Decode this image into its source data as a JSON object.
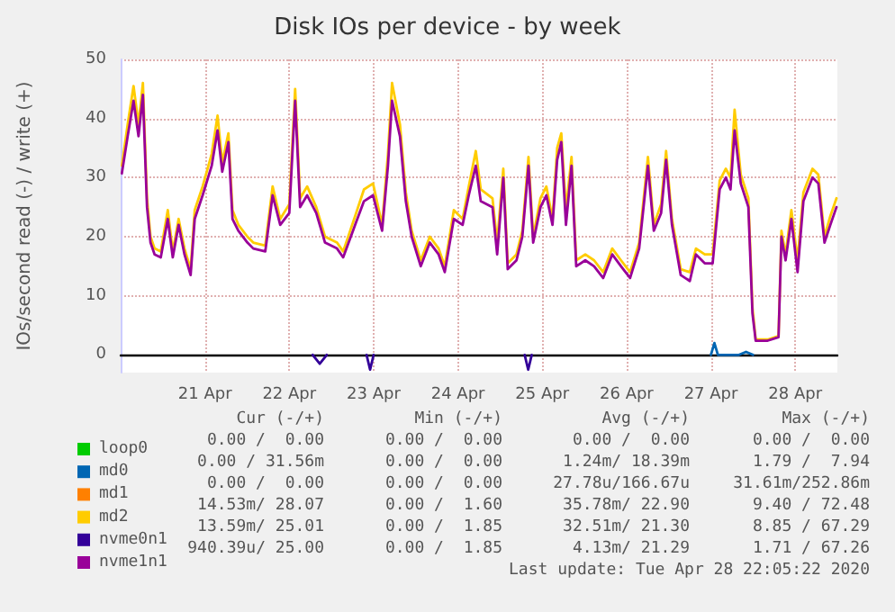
{
  "chart_data": {
    "type": "line",
    "title": "Disk IOs per device - by week",
    "ylabel": "IOs/second read (-) / write (+)",
    "x": [
      "2020-04-20T12:20",
      "2020-04-20T14:00",
      "2020-04-20T15:40",
      "2020-04-20T17:05",
      "2020-04-20T18:20",
      "2020-04-20T19:30",
      "2020-04-20T20:30",
      "2020-04-20T21:40",
      "2020-04-20T23:25",
      "2020-04-21T01:25",
      "2020-04-21T02:50",
      "2020-04-21T04:30",
      "2020-04-21T06:10",
      "2020-04-21T07:55",
      "2020-04-21T09:05",
      "2020-04-21T11:20",
      "2020-04-21T13:55",
      "2020-04-21T15:35",
      "2020-04-21T16:55",
      "2020-04-21T18:40",
      "2020-04-21T19:50",
      "2020-04-21T21:30",
      "2020-04-22T00:05",
      "2020-04-22T01:45",
      "2020-04-22T05:10",
      "2020-04-22T07:15",
      "2020-04-22T09:25",
      "2020-04-22T12:00",
      "2020-04-22T13:40",
      "2020-04-22T15:05",
      "2020-04-22T17:05",
      "2020-04-22T19:40",
      "2020-04-22T22:10",
      "2020-04-23T01:35",
      "2020-04-23T03:20",
      "2020-04-23T06:45",
      "2020-04-23T09:15",
      "2020-04-23T11:50",
      "2020-04-23T14:25",
      "2020-04-23T16:05",
      "2020-04-23T17:15",
      "2020-04-23T19:30",
      "2020-04-23T21:10",
      "2020-04-23T22:50",
      "2020-04-24T01:25",
      "2020-04-24T04:00",
      "2020-04-24T06:30",
      "2020-04-24T08:15",
      "2020-04-24T10:50",
      "2020-04-24T13:20",
      "2020-04-24T15:05",
      "2020-04-24T17:05",
      "2020-04-24T18:30",
      "2020-04-24T21:50",
      "2020-04-24T23:10",
      "2020-04-25T00:55",
      "2020-04-25T02:10",
      "2020-04-25T04:40",
      "2020-04-25T06:20",
      "2020-04-25T08:05",
      "2020-04-25T09:25",
      "2020-04-25T11:30",
      "2020-04-25T13:10",
      "2020-04-25T14:55",
      "2020-04-25T16:15",
      "2020-04-25T17:25",
      "2020-04-25T18:45",
      "2020-04-25T20:20",
      "2020-04-25T21:40",
      "2020-04-26T00:15",
      "2020-04-26T02:45",
      "2020-04-26T05:20",
      "2020-04-26T07:55",
      "2020-04-26T10:25",
      "2020-04-26T13:00",
      "2020-04-26T15:35",
      "2020-04-26T18:05",
      "2020-04-26T19:45",
      "2020-04-26T21:50",
      "2020-04-26T23:15",
      "2020-04-27T00:55",
      "2020-04-27T03:25",
      "2020-04-27T06:00",
      "2020-04-27T07:45",
      "2020-04-27T10:15",
      "2020-04-27T12:30",
      "2020-04-27T14:30",
      "2020-04-27T16:15",
      "2020-04-27T17:35",
      "2020-04-27T18:45",
      "2020-04-27T20:30",
      "2020-04-27T22:40",
      "2020-04-27T23:50",
      "2020-04-28T00:45",
      "2020-04-28T04:10",
      "2020-04-28T07:15",
      "2020-04-28T08:05",
      "2020-04-28T09:15",
      "2020-04-28T10:55",
      "2020-04-28T12:40",
      "2020-04-28T14:20",
      "2020-04-28T16:55",
      "2020-04-28T18:35",
      "2020-04-28T20:20",
      "2020-04-28T22:00",
      "2020-04-28T23:45"
    ],
    "series": [
      {
        "name": "loop0",
        "color": "#00cc00",
        "values": [
          null,
          null,
          null,
          null,
          null,
          null,
          null,
          null,
          null,
          null,
          null,
          null,
          null,
          null,
          null,
          null,
          null,
          null,
          null,
          null,
          null,
          null,
          null,
          null,
          null,
          null,
          null,
          null,
          null,
          null,
          null,
          null,
          null,
          null,
          null,
          null,
          null,
          null,
          null,
          null,
          null,
          null,
          null,
          null,
          null,
          null,
          null,
          null,
          null,
          null,
          null,
          null,
          null,
          null,
          null,
          null,
          null,
          null,
          null,
          null,
          null,
          null,
          null,
          null,
          null,
          null,
          null,
          null,
          null,
          null,
          null,
          null,
          null,
          null,
          null,
          null,
          null,
          null,
          null,
          null,
          null,
          null,
          null,
          null,
          null,
          null,
          null,
          null,
          null,
          null,
          null,
          null,
          null,
          null,
          null,
          null,
          null,
          null,
          null,
          null,
          null,
          null,
          null,
          null,
          null,
          null
        ]
      },
      {
        "name": "md0",
        "color": "#0066b3",
        "x": [
          "2020-04-27T12:00",
          "2020-04-27T13:00",
          "2020-04-27T14:00",
          "2020-04-27T20:00",
          "2020-04-27T22:00",
          "2020-04-28T00:00"
        ],
        "values": [
          0,
          2,
          0,
          0,
          0.5,
          0
        ]
      },
      {
        "name": "md1",
        "color": "#ff8000",
        "values": [
          null,
          null,
          null,
          null,
          null,
          null,
          null,
          null,
          null,
          null,
          null,
          null,
          null,
          null,
          null,
          null,
          null,
          null,
          null,
          null,
          null,
          null,
          null,
          null,
          null,
          null,
          null,
          null,
          null,
          null,
          null,
          null,
          null,
          null,
          null,
          null,
          null,
          null,
          null,
          null,
          null,
          null,
          null,
          null,
          null,
          null,
          null,
          null,
          null,
          null,
          null,
          null,
          null,
          null,
          null,
          null,
          null,
          null,
          null,
          null,
          null,
          null,
          null,
          null,
          null,
          null,
          null,
          null,
          null,
          null,
          null,
          null,
          null,
          null,
          null,
          null,
          null,
          null,
          null,
          null,
          null,
          null,
          null,
          null,
          null,
          null,
          null,
          null,
          null,
          null,
          null,
          null,
          null,
          null,
          null,
          null,
          null,
          null,
          null,
          null,
          null,
          null,
          null,
          null,
          null,
          null
        ]
      },
      {
        "name": "md2",
        "color": "#ffcc00",
        "values": [
          32,
          39,
          45.5,
          39,
          46,
          26.5,
          20,
          18,
          17.5,
          24.5,
          17.5,
          23,
          18,
          14.5,
          24.5,
          28.5,
          34,
          40.5,
          32.5,
          37.5,
          24.5,
          22,
          20,
          19,
          18.5,
          28.5,
          23,
          25.5,
          45,
          26.5,
          28.5,
          25,
          20,
          19,
          17.5,
          23.5,
          28,
          29,
          22,
          34,
          46,
          39,
          27.5,
          21,
          16,
          20,
          18,
          15,
          24.5,
          23,
          28.5,
          34.5,
          28,
          26.5,
          19,
          31.5,
          15.5,
          17,
          21,
          33.5,
          20,
          26.5,
          28.5,
          23,
          35,
          37.5,
          24.5,
          33.5,
          16,
          17,
          16,
          14,
          18,
          16,
          14,
          19,
          33.5,
          22,
          25.5,
          34.5,
          23,
          14.5,
          14,
          18,
          17,
          17,
          29.5,
          31.5,
          30,
          41.5,
          30.5,
          26.5,
          8,
          2.6,
          2.6,
          3.2,
          21,
          17,
          24.5,
          16,
          27.5,
          31.5,
          30.5,
          20,
          23.5,
          26.5
        ]
      },
      {
        "name": "nvme0n1",
        "color": "#330099",
        "x": [
          "2020-04-22T18:40",
          "2020-04-22T20:40",
          "2020-04-22T22:40",
          "2020-04-23T00:00",
          "2020-04-23T10:00",
          "2020-04-23T11:00",
          "2020-04-23T12:00",
          "2020-04-24T00:00",
          "2020-04-25T07:00",
          "2020-04-25T08:00",
          "2020-04-25T09:00"
        ],
        "values": [
          0,
          -1.5,
          0,
          null,
          0,
          -2.5,
          0,
          null,
          0,
          -2.5,
          0
        ]
      },
      {
        "name": "nvme1n1",
        "color": "#990099",
        "values": [
          30.7,
          37,
          43,
          37,
          44,
          25,
          19,
          17,
          16.5,
          23,
          16.5,
          22,
          17,
          13.5,
          23,
          27,
          32,
          38,
          31,
          36,
          23,
          21,
          19,
          18,
          17.5,
          27,
          22,
          24,
          43,
          25,
          27,
          24,
          19,
          18,
          16.5,
          22,
          26,
          27,
          21,
          32,
          43,
          37,
          26,
          20,
          15,
          19,
          17,
          14,
          23,
          22,
          27,
          32,
          26,
          25,
          17,
          30,
          14.5,
          16,
          20,
          32,
          19,
          25,
          27,
          22,
          33,
          36,
          22,
          32,
          15,
          16,
          15,
          13,
          17,
          15,
          13,
          18,
          32,
          21,
          24,
          33,
          22,
          13.5,
          12.5,
          17,
          15.5,
          15.5,
          28,
          30,
          28,
          38,
          29,
          25,
          7,
          2.4,
          2.4,
          3,
          20,
          16,
          23,
          14,
          26,
          30,
          29,
          19,
          22,
          25
        ]
      }
    ],
    "xlim": [
      "2020-04-20T12:00",
      "2020-04-29T00:00"
    ],
    "xticks": [
      {
        "value": "2020-04-21T12:00",
        "label": "21 Apr"
      },
      {
        "value": "2020-04-22T12:00",
        "label": "22 Apr"
      },
      {
        "value": "2020-04-23T12:00",
        "label": "23 Apr"
      },
      {
        "value": "2020-04-24T12:00",
        "label": "24 Apr"
      },
      {
        "value": "2020-04-25T12:00",
        "label": "25 Apr"
      },
      {
        "value": "2020-04-26T12:00",
        "label": "26 Apr"
      },
      {
        "value": "2020-04-27T12:00",
        "label": "27 Apr"
      },
      {
        "value": "2020-04-28T12:00",
        "label": "28 Apr"
      }
    ],
    "ylim": [
      -3,
      50
    ],
    "yticks": [
      0,
      10,
      20,
      30,
      40,
      50
    ],
    "grid": true,
    "legend": "bottom left",
    "marker": "none",
    "line_style": "solid",
    "annotations": [
      "Cur (-/+)",
      "Min (-/+)",
      "Avg (-/+)",
      "Max (-/+)",
      "0.00 /  0.00",
      "0.00 /  0.00",
      "0.00 /  0.00",
      "0.00 /  0.00",
      "0.00 / 31.56m",
      "0.00 /  0.00",
      "1.24m/ 18.39m",
      "1.79 /  7.94",
      "0.00 /  0.00",
      "0.00 /  0.00",
      "27.78u/166.67u",
      "31.61m/252.86m",
      "14.53m/ 28.07",
      "0.00 /  1.60",
      "35.78m/ 22.90",
      "9.40 / 72.48",
      "13.59m/ 25.01",
      "0.00 /  1.85",
      "32.51m/ 21.30",
      "8.85 / 67.29",
      "940.39u/ 25.00",
      "0.00 /  1.85",
      "4.13m/ 21.29",
      "1.71 / 67.26",
      "Last update: Tue Apr 28 22:05:22 2020"
    ]
  }
}
